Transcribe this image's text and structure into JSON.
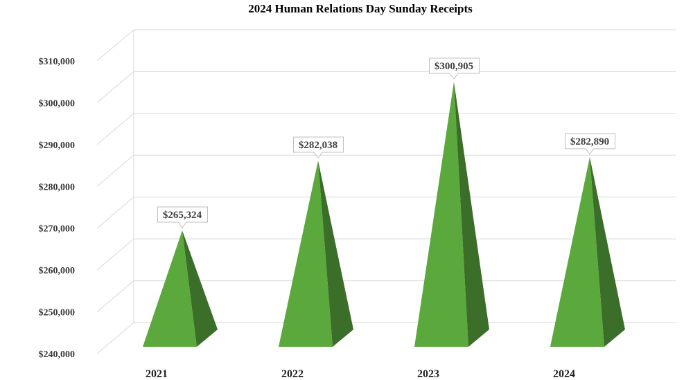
{
  "chart_data": {
    "type": "bar",
    "bar_shape": "pyramid",
    "title": "2024 Human Relations Day Sunday Receipts",
    "categories": [
      "2021",
      "2022",
      "2023",
      "2024"
    ],
    "values": [
      265324,
      282038,
      300905,
      282890
    ],
    "data_labels": [
      "$265,324",
      "$282,038",
      "$300,905",
      "$282,890"
    ],
    "xlabel": "",
    "ylabel": "",
    "ylim": [
      240000,
      310000
    ],
    "y_ticks": [
      240000,
      250000,
      260000,
      270000,
      280000,
      290000,
      300000,
      310000
    ],
    "y_tick_labels": [
      "$240,000",
      "$250,000",
      "$260,000",
      "$270,000",
      "$280,000",
      "$290,000",
      "$300,000",
      "$310,000"
    ],
    "grid": true,
    "legend": "none",
    "colors": {
      "bar_front": "#5ba83c",
      "bar_side": "#3b6e28",
      "grid": "#d9d9d9",
      "label_border": "#bfbfbf"
    }
  }
}
